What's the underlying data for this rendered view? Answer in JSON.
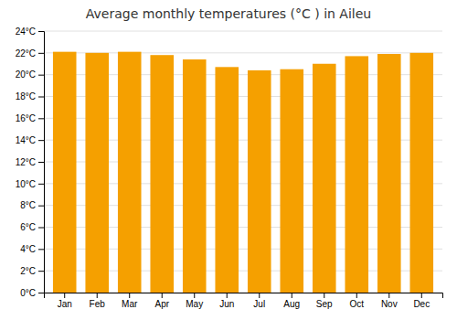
{
  "chart_data": {
    "type": "bar",
    "title": "Average monthly temperatures (°C ) in Aileu",
    "categories": [
      "Jan",
      "Feb",
      "Mar",
      "Apr",
      "May",
      "Jun",
      "Jul",
      "Aug",
      "Sep",
      "Oct",
      "Nov",
      "Dec"
    ],
    "values": [
      22.1,
      22.0,
      22.1,
      21.8,
      21.4,
      20.7,
      20.4,
      20.5,
      21.0,
      21.7,
      21.9,
      22.0
    ],
    "color": "#F5A000",
    "ylim": [
      0,
      24
    ],
    "yticks": [
      {
        "value": 0,
        "label": "0°C"
      },
      {
        "value": 2,
        "label": "2°C"
      },
      {
        "value": 4,
        "label": "4°C"
      },
      {
        "value": 6,
        "label": "6°C"
      },
      {
        "value": 8,
        "label": "8°C"
      },
      {
        "value": 10,
        "label": "10°C"
      },
      {
        "value": 12,
        "label": "12°C"
      },
      {
        "value": 14,
        "label": "14°C"
      },
      {
        "value": 16,
        "label": "16°C"
      },
      {
        "value": 18,
        "label": "18°C"
      },
      {
        "value": 20,
        "label": "20°C"
      },
      {
        "value": 22,
        "label": "22°C"
      },
      {
        "value": 24,
        "label": "24°C"
      }
    ],
    "grid": true
  }
}
